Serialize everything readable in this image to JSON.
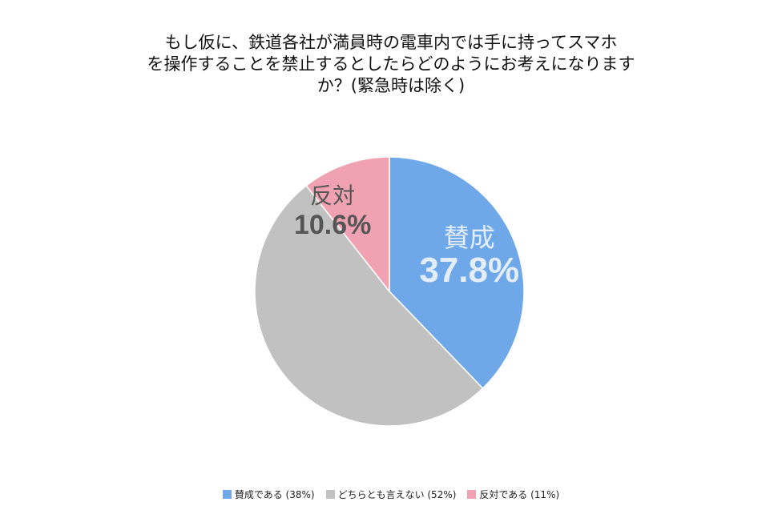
{
  "chart_data": {
    "type": "pie",
    "title": "もし仮に、鉄道各社が満員時の電車内では手に持ってスマホを操作することを禁止するとしたらどのようにお考えになりますか？(緊急時は除く)",
    "title_lines": [
      "もし仮に、鉄道各社が満員時の電車内では手に持ってスマホ",
      "を操作することを禁止するとしたらどのようにお考えになります",
      "か？(緊急時は除く)"
    ],
    "slices": [
      {
        "legend": "賛成である (38%)",
        "label": "賛成",
        "value": 37.8,
        "value_label": "37.8%",
        "color": "#6fa8e8",
        "label_color": "#e4eefa"
      },
      {
        "legend": "どちらとも言えない (52%)",
        "label": "",
        "value": 51.6,
        "value_label": "",
        "color": "#c1c1c1",
        "label_color": "#555555"
      },
      {
        "legend": "反対である (11%)",
        "label": "反対",
        "value": 10.6,
        "value_label": "10.6%",
        "color": "#f0a2b2",
        "label_color": "#555555"
      }
    ],
    "start_angle_deg": 0,
    "direction": "clockwise",
    "legend_position": "bottom"
  }
}
